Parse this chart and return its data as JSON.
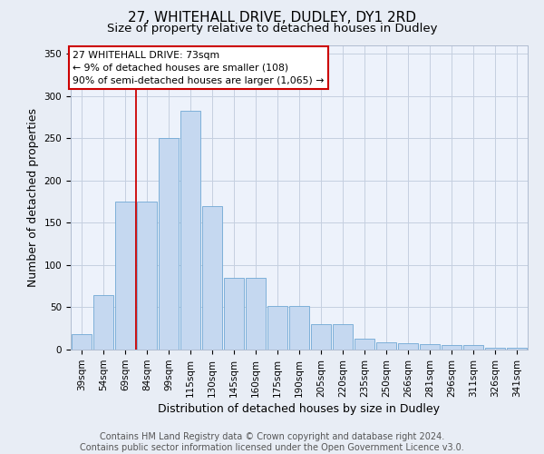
{
  "title_line1": "27, WHITEHALL DRIVE, DUDLEY, DY1 2RD",
  "title_line2": "Size of property relative to detached houses in Dudley",
  "xlabel": "Distribution of detached houses by size in Dudley",
  "ylabel": "Number of detached properties",
  "categories": [
    "39sqm",
    "54sqm",
    "69sqm",
    "84sqm",
    "99sqm",
    "115sqm",
    "130sqm",
    "145sqm",
    "160sqm",
    "175sqm",
    "190sqm",
    "205sqm",
    "220sqm",
    "235sqm",
    "250sqm",
    "266sqm",
    "281sqm",
    "296sqm",
    "311sqm",
    "326sqm",
    "341sqm"
  ],
  "values": [
    18,
    65,
    175,
    175,
    250,
    283,
    170,
    85,
    85,
    52,
    52,
    30,
    30,
    13,
    9,
    7,
    6,
    5,
    5,
    2,
    2
  ],
  "bar_color": "#c5d8f0",
  "bar_edge_color": "#6fa8d4",
  "bg_color": "#edf2fb",
  "annotation_text": "27 WHITEHALL DRIVE: 73sqm\n← 9% of detached houses are smaller (108)\n90% of semi-detached houses are larger (1,065) →",
  "vline_x": 2.5,
  "vline_color": "#cc0000",
  "annotation_box_facecolor": "#ffffff",
  "annotation_box_edgecolor": "#cc0000",
  "footer_text": "Contains HM Land Registry data © Crown copyright and database right 2024.\nContains public sector information licensed under the Open Government Licence v3.0.",
  "ylim": [
    0,
    360
  ],
  "yticks": [
    0,
    50,
    100,
    150,
    200,
    250,
    300,
    350
  ],
  "title_fontsize": 11,
  "subtitle_fontsize": 9.5,
  "axis_label_fontsize": 9,
  "tick_fontsize": 7.5,
  "footer_fontsize": 7,
  "fig_bg_color": "#e8edf5"
}
